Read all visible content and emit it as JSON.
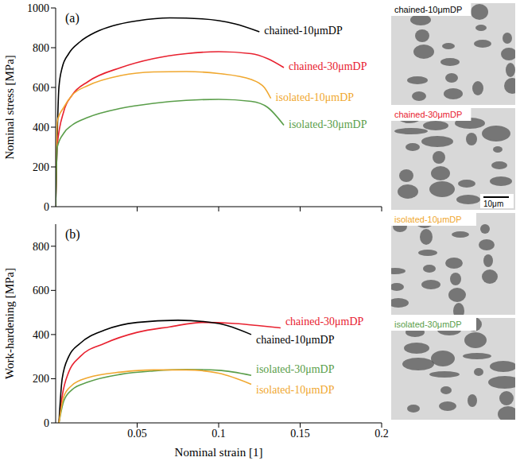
{
  "chart_data": [
    {
      "type": "line",
      "panel_label": "(a)",
      "y_label": "Nominal stress [MPa]",
      "xlim": [
        0,
        0.2
      ],
      "xticks": [
        0.05,
        0.1,
        0.15,
        0.2
      ],
      "ylim": [
        0,
        1000
      ],
      "yticks": [
        0,
        200,
        400,
        600,
        800,
        1000
      ],
      "tick_labels": "y",
      "series": [
        {
          "name": "chained-10μmDP",
          "color": "#000000",
          "x": [
            0,
            0.002,
            0.004,
            0.008,
            0.015,
            0.025,
            0.035,
            0.05,
            0.07,
            0.09,
            0.11,
            0.125
          ],
          "values": [
            0,
            600,
            700,
            770,
            830,
            880,
            910,
            935,
            950,
            945,
            920,
            880
          ]
        },
        {
          "name": "chained-30μmDP",
          "color": "#e8212f",
          "x": [
            0,
            0.001,
            0.005,
            0.01,
            0.02,
            0.04,
            0.06,
            0.08,
            0.1,
            0.12,
            0.13,
            0.14
          ],
          "values": [
            0,
            310,
            480,
            560,
            630,
            700,
            745,
            770,
            780,
            770,
            745,
            700
          ]
        },
        {
          "name": "isolated-10μmDP",
          "color": "#f0a830",
          "x": [
            0,
            0.001,
            0.005,
            0.01,
            0.02,
            0.04,
            0.06,
            0.08,
            0.1,
            0.12,
            0.128,
            0.132
          ],
          "values": [
            0,
            430,
            500,
            560,
            610,
            660,
            678,
            680,
            670,
            640,
            600,
            545
          ]
        },
        {
          "name": "isolated-30μmDP",
          "color": "#5a9e4a",
          "x": [
            0,
            0.001,
            0.005,
            0.01,
            0.02,
            0.04,
            0.06,
            0.08,
            0.1,
            0.12,
            0.13,
            0.14
          ],
          "values": [
            0,
            300,
            370,
            410,
            450,
            495,
            520,
            535,
            540,
            530,
            500,
            410
          ]
        }
      ]
    },
    {
      "type": "line",
      "panel_label": "(b)",
      "x_label": "Nominal strain [1]",
      "y_label": "Work-hardening [MPa]",
      "xlim": [
        0,
        0.2
      ],
      "xticks": [
        0.05,
        0.1,
        0.15,
        0.2
      ],
      "ylim": [
        0,
        900
      ],
      "yticks": [
        0,
        200,
        400,
        600,
        800
      ],
      "series": [
        {
          "name": "chained-30μmDP",
          "color": "#e8212f",
          "x": [
            0.002,
            0.004,
            0.008,
            0.015,
            0.03,
            0.05,
            0.07,
            0.09,
            0.11,
            0.125,
            0.138
          ],
          "values": [
            0,
            120,
            230,
            300,
            360,
            410,
            435,
            455,
            450,
            440,
            430
          ]
        },
        {
          "name": "chained-10μmDP",
          "color": "#000000",
          "x": [
            0.002,
            0.004,
            0.008,
            0.015,
            0.03,
            0.05,
            0.075,
            0.1,
            0.12
          ],
          "values": [
            0,
            200,
            300,
            360,
            420,
            455,
            465,
            450,
            400
          ]
        },
        {
          "name": "isolated-30μmDP",
          "color": "#5a9e4a",
          "x": [
            0.002,
            0.005,
            0.01,
            0.02,
            0.04,
            0.06,
            0.08,
            0.1,
            0.12
          ],
          "values": [
            0,
            100,
            150,
            185,
            220,
            235,
            242,
            238,
            215
          ]
        },
        {
          "name": "isolated-10μmDP",
          "color": "#f0a830",
          "x": [
            0.002,
            0.005,
            0.01,
            0.02,
            0.04,
            0.06,
            0.08,
            0.1,
            0.12
          ],
          "values": [
            0,
            120,
            170,
            205,
            230,
            240,
            240,
            225,
            175
          ]
        }
      ]
    }
  ],
  "micrographs": [
    {
      "label": "chained-10μmDP",
      "color": "#000000"
    },
    {
      "label": "chained-30μmDP",
      "color": "#e8212f",
      "scale_bar": "10μm"
    },
    {
      "label": "isolated-10μmDP",
      "color": "#f0a830"
    },
    {
      "label": "isolated-30μmDP",
      "color": "#5a9e4a"
    }
  ]
}
